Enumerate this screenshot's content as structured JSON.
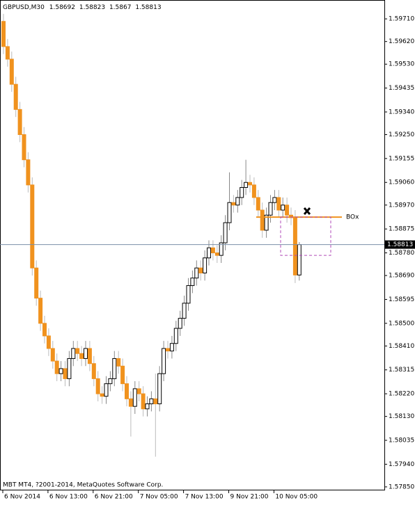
{
  "chart_data": {
    "type": "candlestick",
    "symbol": "GBPUSD,M30",
    "footer": "MBT MT4, ?2001-2014, MetaQuotes Software Corp.",
    "categories": [
      "6 Nov 2014",
      null,
      null,
      null,
      null,
      null,
      null,
      null,
      null,
      null,
      null,
      "6 Nov 13:00",
      null,
      null,
      null,
      null,
      null,
      null,
      null,
      null,
      null,
      null,
      "6 Nov 21:00",
      null,
      null,
      null,
      null,
      null,
      null,
      null,
      null,
      null,
      null,
      "7 Nov 05:00",
      null,
      null,
      null,
      null,
      null,
      null,
      null,
      null,
      null,
      null,
      "7 Nov 13:00",
      null,
      null,
      null,
      null,
      null,
      null,
      null,
      null,
      null,
      null,
      "9 Nov 21:00",
      null,
      null,
      null,
      null,
      null,
      null,
      null,
      null,
      null,
      null,
      "10 Nov 05:00",
      null,
      null,
      null,
      null,
      null,
      null
    ],
    "open": [
      1.597,
      1.596,
      1.5955,
      1.5945,
      1.5935,
      1.5925,
      1.5915,
      1.5905,
      1.5872,
      1.586,
      1.585,
      1.5845,
      1.584,
      1.5835,
      1.583,
      1.5832,
      1.5828,
      1.5836,
      1.584,
      1.5838,
      1.5836,
      1.584,
      1.5834,
      1.5828,
      1.5822,
      1.5821,
      1.5826,
      1.5828,
      1.5836,
      1.5833,
      1.5826,
      1.582,
      1.5817,
      1.5824,
      1.5822,
      1.5816,
      1.5818,
      1.582,
      1.5818,
      1.583,
      1.584,
      1.5839,
      1.5842,
      1.5848,
      1.5852,
      1.5858,
      1.5865,
      1.5868,
      1.5872,
      1.587,
      1.5876,
      1.588,
      1.5878,
      1.5877,
      1.5882,
      1.589,
      1.5898,
      1.5897,
      1.59,
      1.5904,
      1.5906,
      1.5905,
      1.59,
      1.5895,
      1.5887,
      1.5893,
      1.5898,
      1.59,
      1.5895,
      1.5897,
      1.5893,
      1.5892,
      1.58692
    ],
    "high": [
      1.5973,
      1.5963,
      1.5958,
      1.5948,
      1.5938,
      1.5928,
      1.5918,
      1.5908,
      1.5875,
      1.5863,
      1.5853,
      1.5848,
      1.5843,
      1.5838,
      1.5835,
      1.5835,
      1.5839,
      1.5843,
      1.5843,
      1.5841,
      1.5843,
      1.5843,
      1.5837,
      1.5831,
      1.5825,
      1.5829,
      1.5831,
      1.5839,
      1.5839,
      1.5836,
      1.5829,
      1.5823,
      1.5827,
      1.5827,
      1.5825,
      1.5821,
      1.5823,
      1.583,
      1.5833,
      1.5843,
      1.5843,
      1.5845,
      1.5851,
      1.5855,
      1.5861,
      1.5868,
      1.5871,
      1.5875,
      1.5875,
      1.5879,
      1.5883,
      1.5883,
      1.5881,
      1.5885,
      1.5893,
      1.591,
      1.5901,
      1.5903,
      1.5907,
      1.5915,
      1.5909,
      1.5908,
      1.5903,
      1.5898,
      1.5896,
      1.5901,
      1.5903,
      1.5903,
      1.59,
      1.59,
      1.5896,
      1.5895,
      1.58823
    ],
    "low": [
      1.5957,
      1.5952,
      1.5942,
      1.5932,
      1.5922,
      1.5912,
      1.5902,
      1.5869,
      1.5857,
      1.5847,
      1.5842,
      1.5837,
      1.5832,
      1.5827,
      1.5827,
      1.5825,
      1.5825,
      1.5833,
      1.5835,
      1.5833,
      1.5833,
      1.5831,
      1.5825,
      1.5819,
      1.5818,
      1.5818,
      1.5823,
      1.5825,
      1.583,
      1.5823,
      1.5817,
      1.5805,
      1.5814,
      1.5819,
      1.5813,
      1.5813,
      1.5815,
      1.5797,
      1.5815,
      1.5827,
      1.5836,
      1.5836,
      1.5839,
      1.5845,
      1.5849,
      1.5855,
      1.5862,
      1.5865,
      1.5867,
      1.5867,
      1.5873,
      1.5875,
      1.5874,
      1.5874,
      1.5879,
      1.5887,
      1.5894,
      1.5894,
      1.5897,
      1.5901,
      1.5902,
      1.5897,
      1.5892,
      1.5884,
      1.5884,
      1.589,
      1.5895,
      1.5892,
      1.5892,
      1.589,
      1.5889,
      1.5866,
      1.5867
    ],
    "close": [
      1.596,
      1.5955,
      1.5945,
      1.5935,
      1.5925,
      1.5915,
      1.5905,
      1.5872,
      1.586,
      1.585,
      1.5845,
      1.584,
      1.5835,
      1.583,
      1.5832,
      1.5828,
      1.5836,
      1.584,
      1.5838,
      1.5836,
      1.584,
      1.5834,
      1.5828,
      1.5822,
      1.5821,
      1.5826,
      1.5828,
      1.5836,
      1.5833,
      1.5826,
      1.582,
      1.5817,
      1.5824,
      1.5822,
      1.5816,
      1.5818,
      1.582,
      1.5818,
      1.583,
      1.584,
      1.5839,
      1.5842,
      1.5848,
      1.5852,
      1.5858,
      1.5865,
      1.5868,
      1.5872,
      1.587,
      1.5876,
      1.588,
      1.5878,
      1.5877,
      1.5882,
      1.589,
      1.5898,
      1.5897,
      1.59,
      1.5904,
      1.5906,
      1.5905,
      1.59,
      1.5895,
      1.5887,
      1.5893,
      1.5898,
      1.59,
      1.5895,
      1.5897,
      1.5893,
      1.5892,
      1.58692,
      1.58813
    ],
    "up_color": "#ffffff",
    "down_color": "#f0921e",
    "ylim": [
      1.57836,
      1.59785
    ],
    "yticks": [
      {
        "value": 1.5971,
        "label": "1.59710"
      },
      {
        "value": 1.5962,
        "label": "1.59620"
      },
      {
        "value": 1.5953,
        "label": "1.59530"
      },
      1.59435,
      {
        "value": 1.5934,
        "label": "1.59340"
      },
      {
        "value": 1.5925,
        "label": "1.59250"
      },
      1.59155,
      {
        "value": 1.5906,
        "label": "1.59060"
      },
      {
        "value": 1.5897,
        "label": "1.58970"
      },
      1.58875,
      {
        "value": 1.5878,
        "label": "1.58780"
      },
      {
        "value": 1.5869,
        "label": "1.58690"
      },
      1.58595,
      {
        "value": 1.585,
        "label": "1.58500"
      },
      {
        "value": 1.5841,
        "label": "1.58410"
      },
      1.58315,
      {
        "value": 1.5822,
        "label": "1.58220"
      },
      {
        "value": 1.5813,
        "label": "1.58130"
      },
      1.58035,
      {
        "value": 1.5794,
        "label": "1.57940"
      },
      {
        "value": 1.5785,
        "label": "1.57850"
      }
    ],
    "annotations": {
      "line": {
        "text": "BOx",
        "price": 1.58922,
        "color": "#f0921e"
      },
      "box": {
        "top": 1.58922,
        "bottom": 1.5877,
        "color": "#b04ab8"
      }
    }
  }
}
